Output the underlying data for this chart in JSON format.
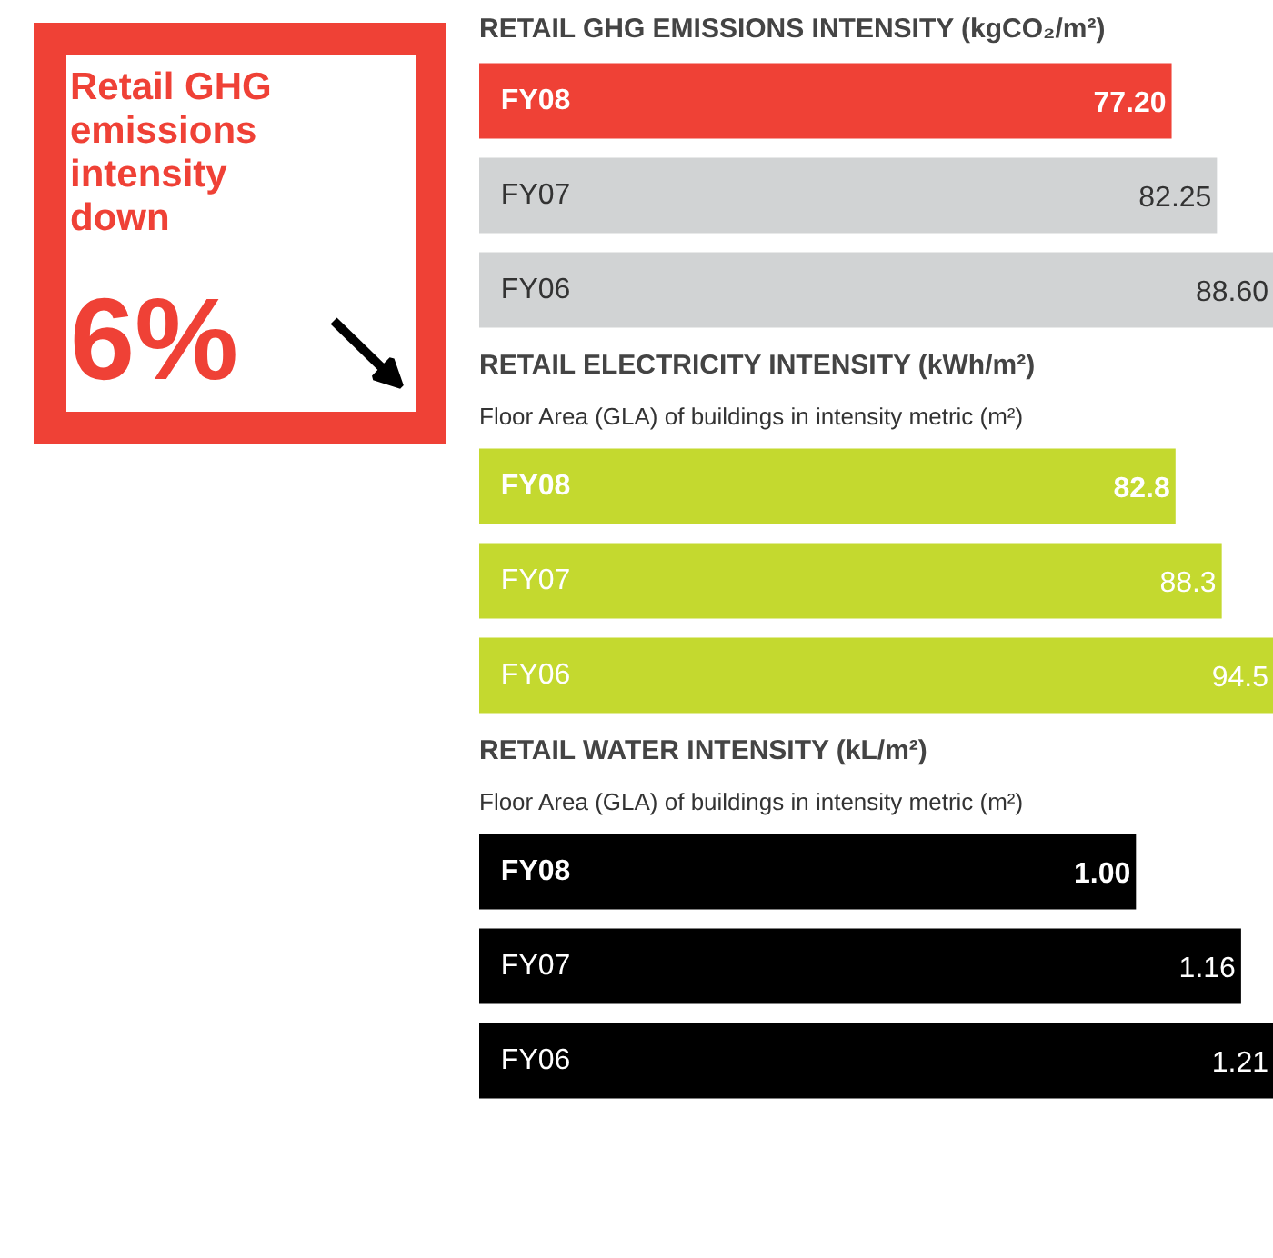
{
  "chart_data": [
    {
      "type": "other",
      "title": "Retail GHG emissions intensity down",
      "annotations": [
        "6%"
      ],
      "color": "#ef4136"
    },
    {
      "type": "bar",
      "orientation": "horizontal",
      "title": "RETAIL GHG EMISSIONS INTENSITY (kgCO₂/m²)",
      "categories": [
        "FY08",
        "FY07",
        "FY06"
      ],
      "values": [
        77.2,
        82.25,
        88.6
      ],
      "value_labels": [
        "77.20",
        "82.25",
        "88.60"
      ],
      "colors": [
        "#ef4136",
        "#d1d3d4",
        "#d1d3d4"
      ]
    },
    {
      "type": "bar",
      "orientation": "horizontal",
      "title": "RETAIL ELECTRICITY INTENSITY (kWh/m²)",
      "subtitle": "Floor Area (GLA) of buildings in intensity metric (m²)",
      "categories": [
        "FY08",
        "FY07",
        "FY06"
      ],
      "values": [
        82.8,
        88.3,
        94.5
      ],
      "data_labels": true,
      "colors": [
        "#c4d92f",
        "#c4d92f",
        "#c4d92f"
      ]
    },
    {
      "type": "bar",
      "orientation": "horizontal",
      "title": "RETAIL WATER INTENSITY (kL/m²)",
      "subtitle": "Floor Area (GLA) of buildings in intensity metric (m²)",
      "categories": [
        "FY08",
        "FY07",
        "FY06"
      ],
      "values": [
        1.0,
        1.16,
        1.21
      ],
      "value_labels": [
        "1.00",
        "1.16",
        "1.21"
      ],
      "colors": [
        "#000000",
        "#000000",
        "#000000"
      ]
    }
  ]
}
